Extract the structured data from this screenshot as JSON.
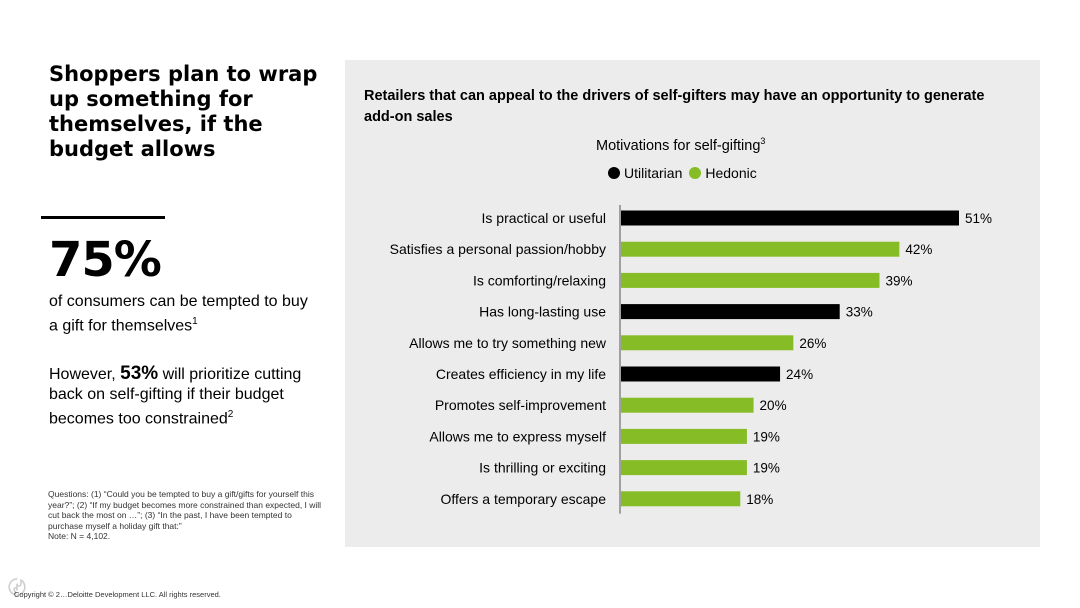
{
  "left": {
    "headline": "Shoppers plan to wrap up something for themselves, if the budget allows",
    "big_stat": "75%",
    "stat_desc": "of consumers can be tempted to buy a gift for themselves",
    "stat_desc_sup": "1",
    "note_prefix": "However, ",
    "note_stat": "53%",
    "note_suffix": " will prioritize cutting back on self-gifting if their budget becomes too constrained",
    "note_sup": "2",
    "questions": "Questions: (1) “Could you be tempted to buy a gift/gifts for yourself this year?”; (2) “If my budget becomes more constrained than expected, I will cut back the most on …”; (3) “In the past, I have been tempted to purchase myself a holiday gift that:”",
    "note_n": "Note: N = 4,102.",
    "copyright": "Copyright © 2…Deloitte Development LLC. All rights reserved."
  },
  "panel": {
    "title": "Retailers that can appeal to the drivers of self-gifters may have an opportunity to generate add-on sales"
  },
  "colors": {
    "utilitarian": "#000000",
    "hedonic": "#86bc25",
    "panel_bg": "#ececec"
  },
  "chart_data": {
    "type": "bar",
    "orientation": "horizontal",
    "title": "Motivations for self-gifting",
    "title_sup": "3",
    "legend": [
      {
        "name": "Utilitarian",
        "color": "#000000"
      },
      {
        "name": "Hedonic",
        "color": "#86bc25"
      }
    ],
    "categories": [
      "Is practical or useful",
      "Satisfies a personal passion/hobby",
      "Is comforting/relaxing",
      "Has long-lasting use",
      "Allows me to try something new",
      "Creates efficiency in my life",
      "Promotes self-improvement",
      "Allows me to express myself",
      "Is thrilling or exciting",
      "Offers a temporary escape"
    ],
    "values": [
      51,
      42,
      39,
      33,
      26,
      24,
      20,
      19,
      19,
      18
    ],
    "value_labels": [
      "51%",
      "42%",
      "39%",
      "33%",
      "26%",
      "24%",
      "20%",
      "19%",
      "19%",
      "18%"
    ],
    "group": [
      "Utilitarian",
      "Hedonic",
      "Hedonic",
      "Utilitarian",
      "Hedonic",
      "Utilitarian",
      "Hedonic",
      "Hedonic",
      "Hedonic",
      "Hedonic"
    ],
    "xlim": [
      0,
      51
    ]
  }
}
